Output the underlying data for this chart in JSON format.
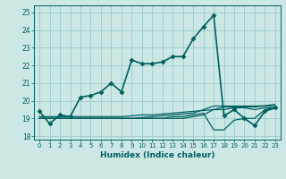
{
  "xlabel": "Humidex (Indice chaleur)",
  "bg_color": "#cce8e4",
  "grid_color": "#99cccc",
  "line_color": "#005f5f",
  "xlim": [
    -0.5,
    23.5
  ],
  "ylim": [
    17.8,
    25.4
  ],
  "yticks": [
    18,
    19,
    20,
    21,
    22,
    23,
    24,
    25
  ],
  "xticks": [
    0,
    1,
    2,
    3,
    4,
    5,
    6,
    7,
    8,
    9,
    10,
    11,
    12,
    13,
    14,
    15,
    16,
    17,
    18,
    19,
    20,
    21,
    22,
    23
  ],
  "series": [
    [
      19.4,
      18.7,
      19.2,
      19.1,
      20.2,
      20.3,
      20.5,
      21.0,
      20.5,
      22.3,
      22.1,
      22.1,
      22.2,
      22.5,
      22.5,
      23.5,
      24.2,
      24.85,
      19.15,
      19.5,
      19.0,
      18.6,
      19.4,
      19.6
    ],
    [
      19.1,
      19.1,
      19.1,
      19.1,
      19.1,
      19.1,
      19.1,
      19.1,
      19.1,
      19.15,
      19.2,
      19.2,
      19.25,
      19.3,
      19.35,
      19.4,
      19.45,
      19.5,
      19.65,
      19.65,
      19.65,
      19.65,
      19.7,
      19.7
    ],
    [
      19.0,
      19.0,
      19.0,
      19.0,
      19.0,
      19.0,
      19.0,
      19.0,
      19.0,
      19.0,
      19.05,
      19.1,
      19.15,
      19.2,
      19.25,
      19.3,
      19.5,
      19.7,
      19.7,
      19.7,
      19.7,
      19.7,
      19.72,
      19.8
    ],
    [
      19.0,
      19.0,
      19.0,
      19.0,
      19.0,
      19.0,
      19.0,
      19.0,
      19.0,
      19.0,
      19.0,
      19.0,
      19.0,
      19.1,
      19.1,
      19.2,
      19.3,
      18.35,
      18.35,
      18.9,
      19.0,
      19.0,
      19.5,
      19.6
    ],
    [
      19.0,
      19.0,
      19.0,
      19.0,
      19.0,
      19.0,
      19.0,
      19.0,
      19.0,
      19.0,
      19.0,
      19.0,
      19.0,
      19.0,
      19.0,
      19.1,
      19.2,
      19.5,
      19.5,
      19.6,
      19.6,
      19.5,
      19.6,
      19.6
    ]
  ]
}
